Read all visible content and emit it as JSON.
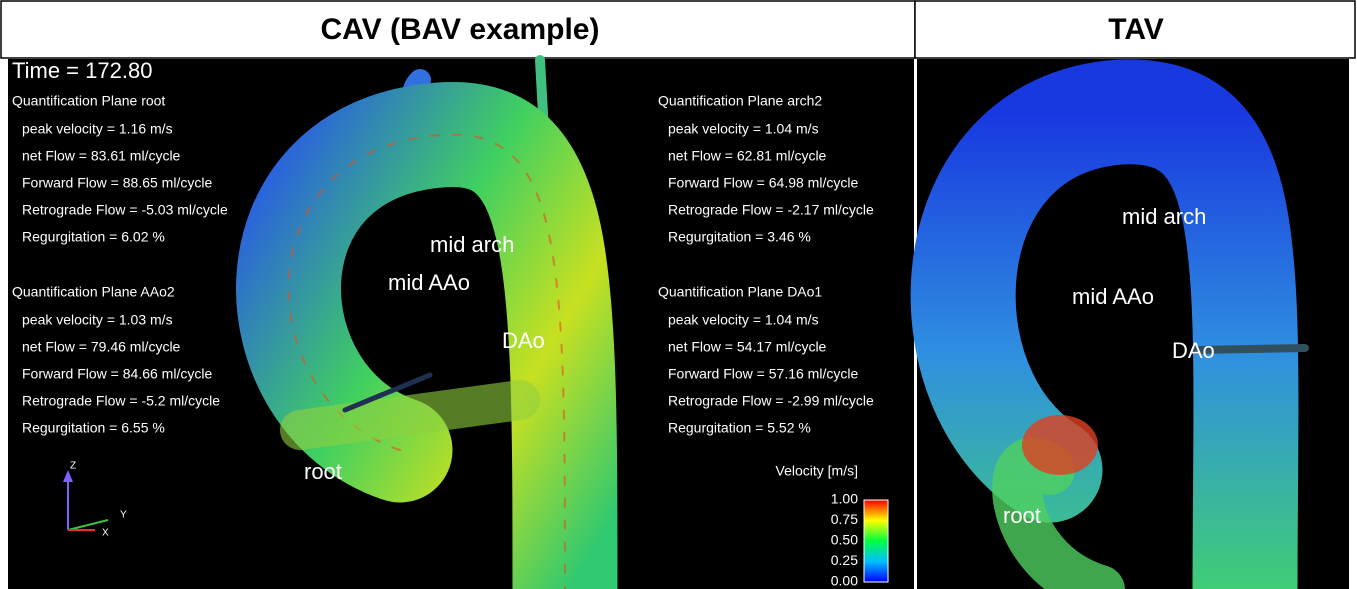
{
  "header": {
    "left": "CAV (BAV example)",
    "right": "TAV"
  },
  "time": "Time = 172.80",
  "planes": [
    {
      "title": "Quantification Plane root",
      "lines": [
        "peak velocity = 1.16 m/s",
        "net Flow = 83.61 ml/cycle",
        "Forward Flow = 88.65 ml/cycle",
        "Retrograde Flow = -5.03 ml/cycle",
        "Regurgitation = 6.02 %"
      ]
    },
    {
      "title": "Quantification Plane AAo2",
      "lines": [
        "peak velocity = 1.03 m/s",
        "net Flow = 79.46 ml/cycle",
        "Forward Flow = 84.66 ml/cycle",
        "Retrograde Flow = -5.2 ml/cycle",
        "Regurgitation = 6.55 %"
      ]
    },
    {
      "title": "Quantification Plane arch2",
      "lines": [
        "peak velocity = 1.04 m/s",
        "net Flow = 62.81 ml/cycle",
        "Forward Flow = 64.98 ml/cycle",
        "Retrograde Flow = -2.17 ml/cycle",
        "Regurgitation = 3.46 %"
      ]
    },
    {
      "title": "Quantification Plane DAo1",
      "lines": [
        "peak velocity = 1.04 m/s",
        "net Flow = 54.17 ml/cycle",
        "Forward Flow = 57.16 ml/cycle",
        "Retrograde Flow = -2.99 ml/cycle",
        "Regurgitation = 5.52 %"
      ]
    }
  ],
  "left_labels": [
    "mid arch",
    "mid AAo",
    "DAo",
    "root"
  ],
  "right_labels": [
    "mid arch",
    "mid AAo",
    "DAo",
    "root"
  ],
  "colorbar": {
    "title": "Velocity [m/s]",
    "ticks": [
      "1.00",
      "0.75",
      "0.50",
      "0.25",
      "0.00"
    ]
  },
  "axes": [
    "Z",
    "Y",
    "X"
  ]
}
